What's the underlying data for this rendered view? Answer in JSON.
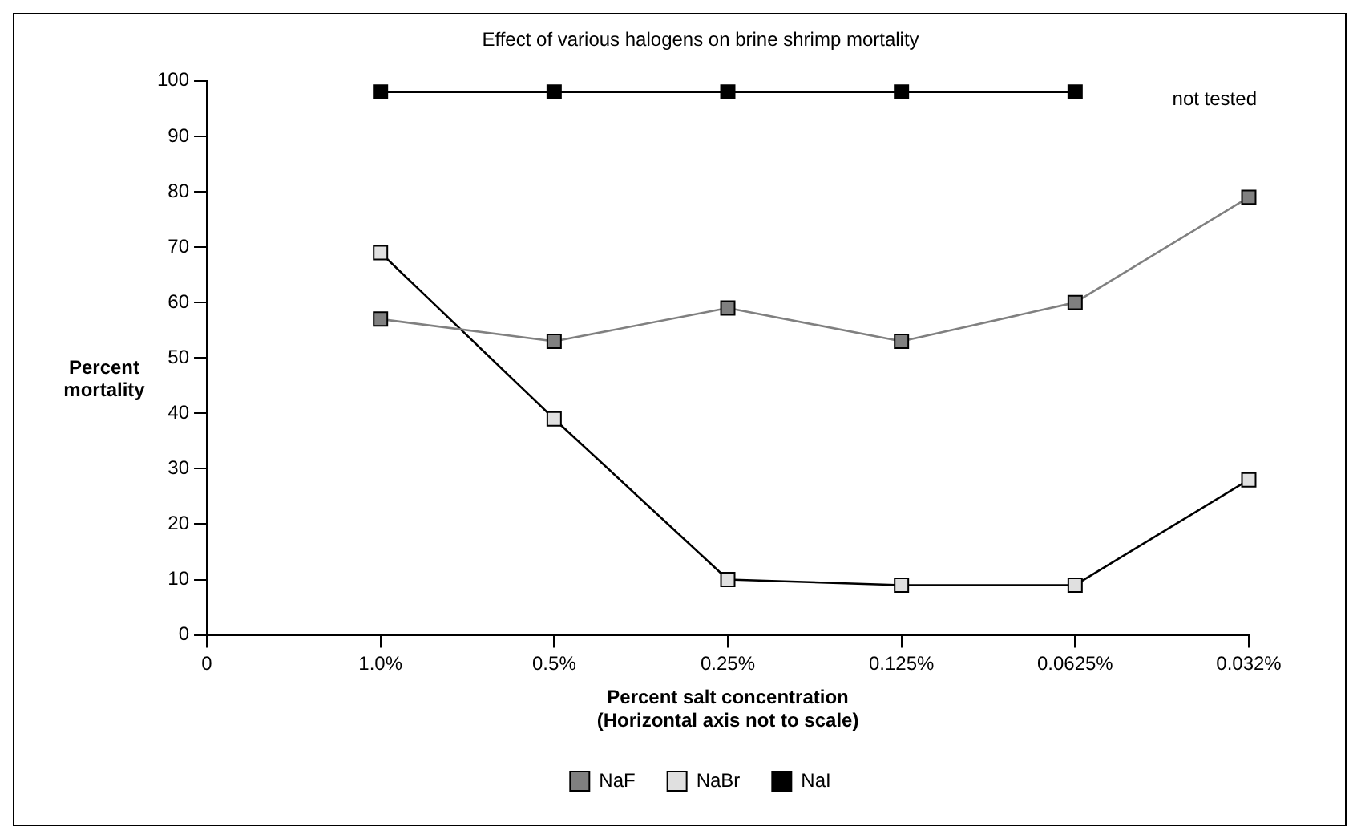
{
  "chart_data": {
    "type": "line",
    "title": "Effect of various halogens on brine shrimp mortality",
    "xlabel": "Percent salt concentration",
    "ylabel": "Percent mortality",
    "categories": [
      "0",
      "1.0%",
      "0.5%",
      "0.25%",
      "0.125%",
      "0.0625%",
      "0.032%"
    ],
    "series": [
      {
        "name": "NaF",
        "color": "#808080",
        "values": [
          null,
          57,
          53,
          59,
          53,
          60,
          79
        ]
      },
      {
        "name": "NaBr",
        "color": "#e0e0e0",
        "values": [
          null,
          69,
          39,
          10,
          9,
          9,
          28
        ]
      },
      {
        "name": "NaI",
        "color": "#000000",
        "values": [
          null,
          98,
          98,
          98,
          98,
          98,
          null
        ]
      }
    ],
    "ylim": [
      0,
      100
    ],
    "yticks": [
      0,
      10,
      20,
      30,
      40,
      50,
      60,
      70,
      80,
      90,
      100
    ],
    "annotations": [
      "not tested",
      "(Horizontal axis not to scale)"
    ],
    "marker": "square",
    "line_style": "solid",
    "grid": false,
    "legend": "bottom"
  }
}
